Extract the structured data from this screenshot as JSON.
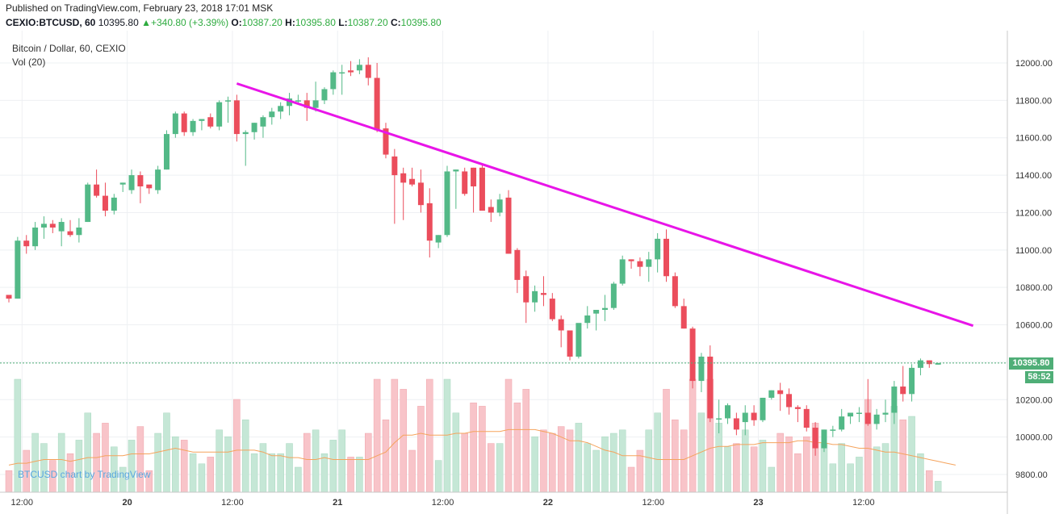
{
  "published": "Published on TradingView.com, February 23, 2018 17:01 MSK",
  "header": {
    "symbol": "CEXIO:BTCUSD, 60",
    "last": "10395.80",
    "change": "+340.80 (+3.39%)",
    "o_label": "O:",
    "o": "10387.20",
    "h_label": "H:",
    "h": "10395.80",
    "l_label": "L:",
    "l": "10387.20",
    "c_label": "C:",
    "c": "10395.80"
  },
  "series_title": "Bitcoin / Dollar, 60, CEXIO",
  "vol_label": "Vol (20)",
  "watermark": "BTCUSD chart by TradingView",
  "price_badge": "10395.80",
  "countdown_badge": "58:52",
  "colors": {
    "up": "#53b987",
    "down": "#eb4d5c",
    "vol_up": "#c5e7d6",
    "vol_down": "#f8c4c9",
    "trendline": "#e815e8",
    "vol_ma": "#f5a35c",
    "grid": "#eef0f3"
  },
  "chart_data": {
    "type": "candlestick",
    "title": "Bitcoin / Dollar, 60, CEXIO",
    "ylim": [
      9720,
      12140
    ],
    "y_ticks": [
      "9800.00",
      "10000.00",
      "10200.00",
      "10400.00",
      "10600.00",
      "10800.00",
      "11000.00",
      "11200.00",
      "11400.00",
      "11600.00",
      "11800.00",
      "12000.00"
    ],
    "x_ticks": [
      {
        "label": "12:00",
        "at": 1.5
      },
      {
        "label": "20",
        "at": 13.5,
        "bold": true
      },
      {
        "label": "12:00",
        "at": 25.5
      },
      {
        "label": "21",
        "at": 37.5,
        "bold": true
      },
      {
        "label": "12:00",
        "at": 49.5
      },
      {
        "label": "22",
        "at": 61.5,
        "bold": true
      },
      {
        "label": "12:00",
        "at": 73.5
      },
      {
        "label": "23",
        "at": 85.5,
        "bold": true
      },
      {
        "label": "12:00",
        "at": 97.5
      }
    ],
    "last_price": 10395.8,
    "candles": [
      [
        10760,
        10760,
        10720,
        10740
      ],
      [
        10740,
        11070,
        10740,
        11050
      ],
      [
        11050,
        11080,
        10980,
        11020
      ],
      [
        11020,
        11150,
        11000,
        11120
      ],
      [
        11120,
        11180,
        11060,
        11140
      ],
      [
        11140,
        11160,
        11090,
        11120
      ],
      [
        11100,
        11170,
        11020,
        11150
      ],
      [
        11100,
        11160,
        11070,
        11080
      ],
      [
        11080,
        11170,
        11040,
        11120
      ],
      [
        11150,
        11360,
        11150,
        11350
      ],
      [
        11350,
        11430,
        11280,
        11290
      ],
      [
        11290,
        11360,
        11180,
        11210
      ],
      [
        11210,
        11300,
        11190,
        11280
      ],
      [
        11350,
        11360,
        11310,
        11360
      ],
      [
        11320,
        11430,
        11300,
        11400
      ],
      [
        11400,
        11420,
        11250,
        11340
      ],
      [
        11350,
        11340,
        11300,
        11330
      ],
      [
        11320,
        11450,
        11300,
        11430
      ],
      [
        11430,
        11640,
        11430,
        11620
      ],
      [
        11620,
        11740,
        11600,
        11730
      ],
      [
        11730,
        11740,
        11610,
        11630
      ],
      [
        11630,
        11700,
        11610,
        11690
      ],
      [
        11690,
        11700,
        11640,
        11700
      ],
      [
        11710,
        11730,
        11650,
        11660
      ],
      [
        11660,
        11800,
        11640,
        11790
      ],
      [
        11800,
        11820,
        11680,
        11800
      ],
      [
        11800,
        11830,
        11580,
        11620
      ],
      [
        11620,
        11640,
        11450,
        11630
      ],
      [
        11630,
        11680,
        11590,
        11680
      ],
      [
        11660,
        11720,
        11600,
        11710
      ],
      [
        11710,
        11760,
        11670,
        11740
      ],
      [
        11740,
        11790,
        11700,
        11770
      ],
      [
        11770,
        11840,
        11720,
        11810
      ],
      [
        11800,
        11830,
        11780,
        11800
      ],
      [
        11800,
        11840,
        11690,
        11760
      ],
      [
        11760,
        11900,
        11740,
        11800
      ],
      [
        11800,
        11870,
        11780,
        11860
      ],
      [
        11860,
        11960,
        11830,
        11950
      ],
      [
        11950,
        11990,
        11830,
        11950
      ],
      [
        11960,
        12010,
        11930,
        11950
      ],
      [
        11960,
        12020,
        11940,
        11990
      ],
      [
        11990,
        12030,
        11880,
        11920
      ],
      [
        11920,
        12000,
        11630,
        11640
      ],
      [
        11650,
        11680,
        11490,
        11510
      ],
      [
        11500,
        11540,
        11140,
        11400
      ],
      [
        11410,
        11440,
        11160,
        11360
      ],
      [
        11380,
        11440,
        11340,
        11350
      ],
      [
        11360,
        11430,
        11200,
        11240
      ],
      [
        11250,
        11330,
        10960,
        11050
      ],
      [
        11040,
        11080,
        11010,
        11080
      ],
      [
        11080,
        11450,
        11070,
        11420
      ],
      [
        11420,
        11430,
        11220,
        11430
      ],
      [
        11420,
        11440,
        11290,
        11300
      ],
      [
        11440,
        11440,
        11200,
        11340
      ],
      [
        11440,
        11460,
        11230,
        11210
      ],
      [
        11230,
        11270,
        11150,
        11200
      ],
      [
        11200,
        11300,
        11180,
        11270
      ],
      [
        11280,
        11320,
        10980,
        10980
      ],
      [
        11000,
        11010,
        10770,
        10840
      ],
      [
        10860,
        10890,
        10610,
        10720
      ],
      [
        10720,
        10810,
        10670,
        10780
      ],
      [
        10770,
        10860,
        10700,
        10760
      ],
      [
        10740,
        10770,
        10620,
        10630
      ],
      [
        10630,
        10650,
        10480,
        10570
      ],
      [
        10570,
        10570,
        10410,
        10430
      ],
      [
        10430,
        10600,
        10420,
        10610
      ],
      [
        10610,
        10700,
        10580,
        10650
      ],
      [
        10660,
        10670,
        10570,
        10680
      ],
      [
        10680,
        10760,
        10620,
        10690
      ],
      [
        10690,
        10830,
        10680,
        10820
      ],
      [
        10820,
        10970,
        10810,
        10950
      ],
      [
        10950,
        10950,
        10900,
        10940
      ],
      [
        10940,
        10960,
        10860,
        10910
      ],
      [
        10910,
        10990,
        10830,
        10950
      ],
      [
        10950,
        11090,
        10880,
        11060
      ],
      [
        11060,
        11110,
        10830,
        10860
      ],
      [
        10860,
        10880,
        10690,
        10700
      ],
      [
        10700,
        10740,
        10580,
        10580
      ],
      [
        10580,
        10590,
        10260,
        10300
      ],
      [
        10300,
        10450,
        10240,
        10430
      ],
      [
        10430,
        10490,
        10080,
        10100
      ],
      [
        10100,
        10200,
        10020,
        10100
      ],
      [
        10100,
        10180,
        10070,
        10170
      ],
      [
        10100,
        10130,
        10010,
        10040
      ],
      [
        10080,
        10170,
        10010,
        10130
      ],
      [
        10130,
        10170,
        10060,
        10090
      ],
      [
        10090,
        10210,
        10080,
        10210
      ],
      [
        10210,
        10250,
        10200,
        10250
      ],
      [
        10250,
        10290,
        10140,
        10230
      ],
      [
        10230,
        10260,
        10120,
        10160
      ],
      [
        10160,
        10170,
        10080,
        10150
      ],
      [
        10150,
        10170,
        10030,
        10050
      ],
      [
        10050,
        10080,
        9900,
        9940
      ],
      [
        9940,
        10040,
        9920,
        10040
      ],
      [
        10040,
        10060,
        10000,
        10040
      ],
      [
        10040,
        10150,
        10030,
        10110
      ],
      [
        10110,
        10130,
        10070,
        10130
      ],
      [
        10130,
        10160,
        10080,
        10130
      ],
      [
        10130,
        10310,
        10060,
        10070
      ],
      [
        10070,
        10150,
        10040,
        10120
      ],
      [
        10120,
        10200,
        10080,
        10130
      ],
      [
        10130,
        10300,
        10070,
        10270
      ],
      [
        10270,
        10380,
        10190,
        10230
      ],
      [
        10230,
        10390,
        10190,
        10370
      ],
      [
        10370,
        10420,
        10330,
        10410
      ],
      [
        10410,
        10410,
        10370,
        10390
      ],
      [
        10387.2,
        10395.8,
        10387.2,
        10395.8
      ]
    ],
    "volume_ma": [
      9850,
      9860,
      9860,
      9870,
      9880,
      9880,
      9880,
      9870,
      9880,
      9890,
      9890,
      9900,
      9900,
      9900,
      9910,
      9910,
      9910,
      9920,
      9930,
      9940,
      9930,
      9920,
      9920,
      9920,
      9920,
      9920,
      9930,
      9930,
      9930,
      9920,
      9900,
      9900,
      9890,
      9890,
      9880,
      9880,
      9890,
      9880,
      9880,
      9880,
      9880,
      9880,
      9900,
      9920,
      9970,
      10010,
      10010,
      10020,
      10010,
      10010,
      10010,
      10020,
      10020,
      10030,
      10030,
      10030,
      10030,
      10040,
      10040,
      10040,
      10040,
      10030,
      10020,
      10000,
      9980,
      9980,
      9970,
      9950,
      9930,
      9920,
      9900,
      9900,
      9900,
      9890,
      9880,
      9880,
      9880,
      9880,
      9900,
      9920,
      9940,
      9950,
      9950,
      9960,
      9960,
      9960,
      9970,
      9970,
      9970,
      9970,
      9980,
      9980,
      9970,
      9970,
      9960,
      9960,
      9950,
      9940,
      9940,
      9930,
      9920,
      9920,
      9910,
      9900,
      9890,
      9880,
      9870,
      9860,
      9850
    ]
  }
}
